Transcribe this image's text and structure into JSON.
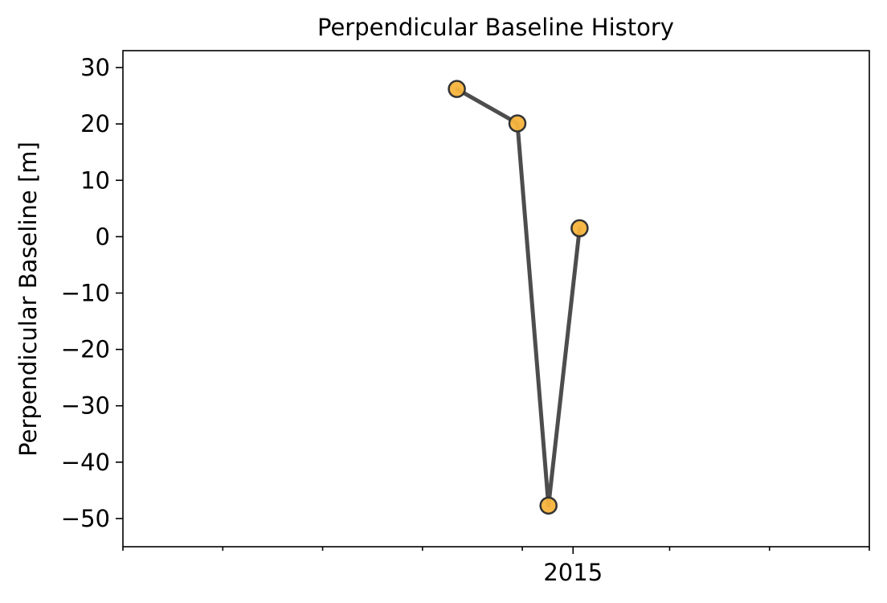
{
  "chart_data": {
    "type": "line",
    "title": "Perpendicular Baseline History",
    "xlabel": "",
    "ylabel": "Perpendicular Baseline [m]",
    "x_axis_kind": "date",
    "xlim": [
      "2014-04-01",
      "2015-07-01"
    ],
    "ylim": [
      -55,
      33
    ],
    "x_tick_values": [
      "2014-04-01",
      "2014-06-01",
      "2014-08-01",
      "2014-10-01",
      "2014-12-01",
      "2015-01-01",
      "2015-03-01",
      "2015-05-01",
      "2015-07-01"
    ],
    "x_tick_labels": [
      "",
      "",
      "",
      "",
      "",
      "2015",
      "",
      "",
      ""
    ],
    "y_ticks": [
      30,
      20,
      10,
      0,
      -10,
      -20,
      -30,
      -40,
      -50
    ],
    "y_tick_labels": [
      "30",
      "20",
      "10",
      "0",
      "−10",
      "−20",
      "−30",
      "−40",
      "−50"
    ],
    "grid": false,
    "legend": "none",
    "series": [
      {
        "x": [
          "2014-10-22",
          "2014-11-28",
          "2014-12-17",
          "2015-01-05"
        ],
        "y": [
          26.2,
          20.1,
          -47.7,
          1.5
        ],
        "line_color": "#4d4d4d",
        "marker_color": "#f7b43d",
        "marker_edge_color": "#333333"
      }
    ]
  }
}
